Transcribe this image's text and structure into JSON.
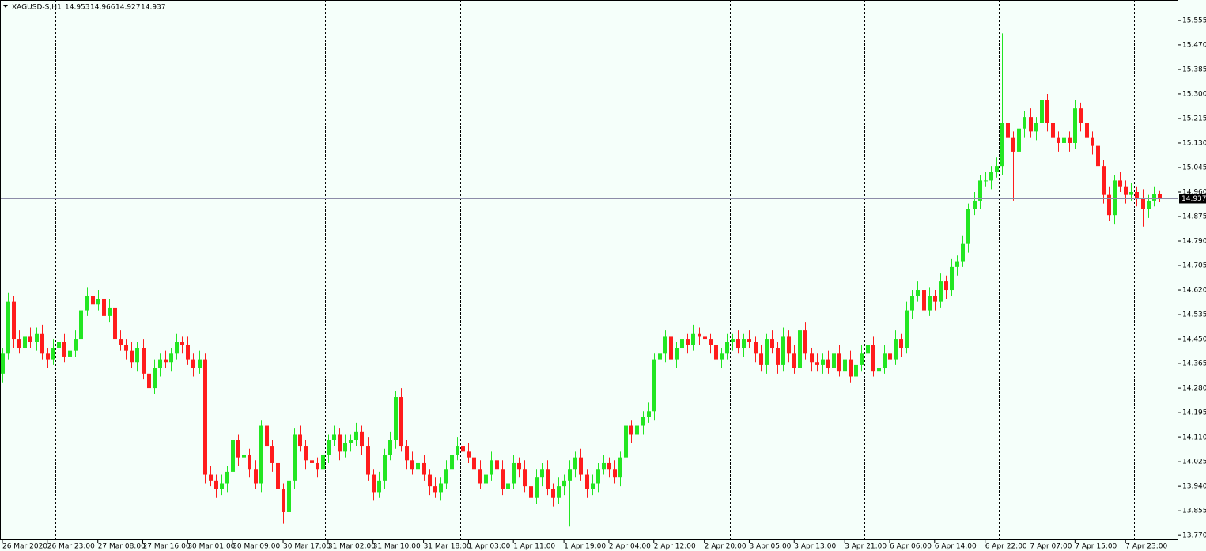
{
  "chart_data": {
    "type": "candlestick",
    "title": "XAGUSD-S,H1",
    "up_color": "#22e622",
    "down_color": "#ff1c1c",
    "period_separators": true,
    "open": [
      14.33,
      14.4,
      14.58,
      14.45,
      14.42,
      14.46,
      14.44,
      14.47,
      14.4,
      14.38,
      14.42,
      14.44,
      14.39,
      14.41,
      14.45,
      14.55,
      14.6,
      14.57,
      14.59,
      14.53,
      14.56,
      14.45,
      14.43,
      14.41,
      14.37,
      14.42,
      14.33,
      14.28,
      14.35,
      14.38,
      14.37,
      14.4,
      14.44,
      14.43,
      14.38,
      14.35,
      14.38,
      13.98,
      13.96,
      13.93,
      13.95,
      13.99,
      14.1,
      14.04,
      14.05,
      14.0,
      13.95,
      14.15,
      14.08,
      14.02,
      13.93,
      13.85,
      13.96,
      14.12,
      14.08,
      14.03,
      14.02,
      14.0,
      14.05,
      14.1,
      14.12,
      14.06,
      14.09,
      14.1,
      14.13,
      14.08,
      13.98,
      13.92,
      13.96,
      14.05,
      14.1,
      14.25,
      14.08,
      14.03,
      14.0,
      14.02,
      13.98,
      13.94,
      13.92,
      13.95,
      14.0,
      14.05,
      14.08,
      14.06,
      14.04,
      14.0,
      13.95,
      13.98,
      14.03,
      14.0,
      13.93,
      13.95,
      14.02,
      14.0,
      13.94,
      13.9,
      13.97,
      14.0,
      13.93,
      13.9,
      13.94,
      13.96,
      14.0,
      14.04,
      13.98,
      13.93,
      13.95,
      14.0,
      14.02,
      14.0,
      13.97,
      14.04,
      14.15,
      14.12,
      14.15,
      14.18,
      14.2,
      14.38,
      14.4,
      14.46,
      14.38,
      14.42,
      14.45,
      14.43,
      14.47,
      14.46,
      14.45,
      14.43,
      14.38,
      14.4,
      14.44,
      14.45,
      14.42,
      14.45,
      14.44,
      14.4,
      14.36,
      14.45,
      14.42,
      14.36,
      14.46,
      14.4,
      14.35,
      14.48,
      14.4,
      14.37,
      14.36,
      14.38,
      14.35,
      14.4,
      14.34,
      14.38,
      14.32,
      14.36,
      14.4,
      14.43,
      14.34,
      14.35,
      14.4,
      14.38,
      14.45,
      14.42,
      14.55,
      14.6,
      14.62,
      14.55,
      14.6,
      14.58,
      14.65,
      14.62,
      14.7,
      14.72,
      14.78,
      14.9,
      14.93,
      15.0,
      15.0,
      15.03,
      15.05,
      15.2,
      15.15,
      15.1,
      15.18,
      15.22,
      15.17,
      15.2,
      15.28,
      15.2,
      15.15,
      15.13,
      15.15,
      15.13,
      15.25,
      15.2,
      15.15,
      15.12,
      15.05,
      14.95,
      14.88,
      15.0,
      14.98,
      14.95,
      14.96,
      14.94,
      14.9,
      14.93,
      14.953
    ],
    "high": [
      14.42,
      14.61,
      14.6,
      14.48,
      14.48,
      14.49,
      14.49,
      14.5,
      14.42,
      14.45,
      14.46,
      14.47,
      14.43,
      14.48,
      14.57,
      14.63,
      14.62,
      14.62,
      14.61,
      14.59,
      14.58,
      14.48,
      14.45,
      14.44,
      14.44,
      14.45,
      14.35,
      14.38,
      14.4,
      14.41,
      14.42,
      14.47,
      14.46,
      14.46,
      14.4,
      14.41,
      14.4,
      14.01,
      13.98,
      13.98,
      14.01,
      14.13,
      14.12,
      14.08,
      14.07,
      14.03,
      14.17,
      14.18,
      14.1,
      14.05,
      13.95,
      13.99,
      14.14,
      14.15,
      14.1,
      14.06,
      14.04,
      14.08,
      14.12,
      14.15,
      14.14,
      14.12,
      14.12,
      14.16,
      14.15,
      14.11,
      14.0,
      13.99,
      14.07,
      14.13,
      14.27,
      14.28,
      14.1,
      14.06,
      14.04,
      14.05,
      14.0,
      13.97,
      13.97,
      14.03,
      14.07,
      14.11,
      14.1,
      14.09,
      14.06,
      14.03,
      14.0,
      14.06,
      14.05,
      14.03,
      13.97,
      14.05,
      14.04,
      14.03,
      13.96,
      14.0,
      14.02,
      14.03,
      13.95,
      13.97,
      13.98,
      14.03,
      14.06,
      14.07,
      14.0,
      13.98,
      14.02,
      14.05,
      14.04,
      14.03,
      14.06,
      14.18,
      14.17,
      14.18,
      14.2,
      14.23,
      14.4,
      14.43,
      14.48,
      14.49,
      14.44,
      14.48,
      14.47,
      14.5,
      14.49,
      14.49,
      14.47,
      14.46,
      14.42,
      14.47,
      14.47,
      14.48,
      14.47,
      14.48,
      14.46,
      14.43,
      14.47,
      14.48,
      14.44,
      14.49,
      14.48,
      14.43,
      14.5,
      14.51,
      14.42,
      14.4,
      14.4,
      14.41,
      14.42,
      14.43,
      14.4,
      14.41,
      14.38,
      14.43,
      14.45,
      14.46,
      14.37,
      14.43,
      14.42,
      14.48,
      14.47,
      14.58,
      14.62,
      14.65,
      14.64,
      14.63,
      14.62,
      14.68,
      14.67,
      14.73,
      14.74,
      14.81,
      14.92,
      14.96,
      15.02,
      15.03,
      15.05,
      15.08,
      15.51,
      15.23,
      15.17,
      15.21,
      15.24,
      15.25,
      15.22,
      15.37,
      15.3,
      15.23,
      15.17,
      15.18,
      15.17,
      15.28,
      15.27,
      15.23,
      15.17,
      15.15,
      15.07,
      14.98,
      15.02,
      15.03,
      15.0,
      14.99,
      14.98,
      14.97,
      14.95,
      14.98,
      14.966
    ],
    "low": [
      14.3,
      14.38,
      14.42,
      14.4,
      14.39,
      14.42,
      14.41,
      14.38,
      14.35,
      14.36,
      14.39,
      14.37,
      14.36,
      14.39,
      14.42,
      14.53,
      14.54,
      14.55,
      14.5,
      14.51,
      14.42,
      14.41,
      14.38,
      14.35,
      14.34,
      14.31,
      14.25,
      14.26,
      14.32,
      14.35,
      14.34,
      14.38,
      14.4,
      14.36,
      14.32,
      14.33,
      13.95,
      13.94,
      13.9,
      13.91,
      13.92,
      13.97,
      14.01,
      14.02,
      13.97,
      13.93,
      13.92,
      14.06,
      13.99,
      13.91,
      13.81,
      13.83,
      13.93,
      14.06,
      14.0,
      14.0,
      13.97,
      13.98,
      14.02,
      14.08,
      14.03,
      14.04,
      14.06,
      14.08,
      14.05,
      13.96,
      13.89,
      13.9,
      13.93,
      14.03,
      14.07,
      14.06,
      14.0,
      13.98,
      13.97,
      13.96,
      13.91,
      13.9,
      13.89,
      13.93,
      13.97,
      14.03,
      14.03,
      14.02,
      13.97,
      13.93,
      13.92,
      13.96,
      13.97,
      13.91,
      13.9,
      13.93,
      13.97,
      13.92,
      13.87,
      13.88,
      13.94,
      13.91,
      13.87,
      13.88,
      13.91,
      13.8,
      13.97,
      13.96,
      13.9,
      13.91,
      13.92,
      13.98,
      13.97,
      13.95,
      13.94,
      14.02,
      14.09,
      14.1,
      14.12,
      14.16,
      14.17,
      14.36,
      14.37,
      14.36,
      14.35,
      14.4,
      14.4,
      14.41,
      14.43,
      14.43,
      14.4,
      14.36,
      14.35,
      14.38,
      14.41,
      14.4,
      14.39,
      14.42,
      14.37,
      14.34,
      14.33,
      14.4,
      14.33,
      14.34,
      14.37,
      14.33,
      14.32,
      14.38,
      14.34,
      14.34,
      14.33,
      14.33,
      14.32,
      14.32,
      14.31,
      14.3,
      14.29,
      14.34,
      14.37,
      14.32,
      14.31,
      14.33,
      14.35,
      14.36,
      14.39,
      14.4,
      14.52,
      14.58,
      14.52,
      14.53,
      14.55,
      14.56,
      14.59,
      14.6,
      14.67,
      14.7,
      14.75,
      14.88,
      14.9,
      14.98,
      14.97,
      15.01,
      15.02,
      15.13,
      14.93,
      15.08,
      15.15,
      15.15,
      15.14,
      15.18,
      15.17,
      15.13,
      15.1,
      15.11,
      15.1,
      15.11,
      15.17,
      15.13,
      15.09,
      15.03,
      14.92,
      14.86,
      14.85,
      14.96,
      14.92,
      14.93,
      14.91,
      14.84,
      14.87,
      14.91,
      14.927
    ],
    "close": [
      14.4,
      14.58,
      14.45,
      14.42,
      14.46,
      14.44,
      14.47,
      14.4,
      14.38,
      14.42,
      14.44,
      14.39,
      14.41,
      14.45,
      14.55,
      14.6,
      14.57,
      14.59,
      14.53,
      14.56,
      14.45,
      14.43,
      14.41,
      14.37,
      14.42,
      14.33,
      14.28,
      14.35,
      14.38,
      14.37,
      14.4,
      14.44,
      14.43,
      14.38,
      14.35,
      14.38,
      13.98,
      13.96,
      13.93,
      13.95,
      13.99,
      14.1,
      14.04,
      14.05,
      14.0,
      13.95,
      14.15,
      14.08,
      14.02,
      13.93,
      13.85,
      13.96,
      14.12,
      14.08,
      14.03,
      14.02,
      14.0,
      14.05,
      14.1,
      14.12,
      14.06,
      14.09,
      14.1,
      14.13,
      14.08,
      13.98,
      13.92,
      13.96,
      14.05,
      14.1,
      14.25,
      14.08,
      14.03,
      14.0,
      14.02,
      13.98,
      13.94,
      13.92,
      13.95,
      14.0,
      14.05,
      14.08,
      14.06,
      14.04,
      14.0,
      13.95,
      13.98,
      14.03,
      14.0,
      13.93,
      13.95,
      14.02,
      14.0,
      13.94,
      13.9,
      13.97,
      14.0,
      13.93,
      13.9,
      13.94,
      13.96,
      14.0,
      14.04,
      13.98,
      13.93,
      13.95,
      14.0,
      14.02,
      14.0,
      13.97,
      14.04,
      14.15,
      14.12,
      14.15,
      14.18,
      14.2,
      14.38,
      14.4,
      14.46,
      14.38,
      14.42,
      14.45,
      14.43,
      14.47,
      14.46,
      14.45,
      14.43,
      14.38,
      14.4,
      14.44,
      14.45,
      14.42,
      14.45,
      14.44,
      14.4,
      14.36,
      14.45,
      14.42,
      14.36,
      14.46,
      14.4,
      14.35,
      14.48,
      14.4,
      14.37,
      14.36,
      14.38,
      14.35,
      14.4,
      14.34,
      14.38,
      14.32,
      14.36,
      14.4,
      14.43,
      14.34,
      14.35,
      14.4,
      14.38,
      14.45,
      14.42,
      14.55,
      14.6,
      14.62,
      14.55,
      14.6,
      14.58,
      14.65,
      14.62,
      14.7,
      14.72,
      14.78,
      14.9,
      14.93,
      15.0,
      15.0,
      15.03,
      15.05,
      15.2,
      15.15,
      15.1,
      15.18,
      15.22,
      15.17,
      15.2,
      15.28,
      15.2,
      15.15,
      15.13,
      15.15,
      15.13,
      15.25,
      15.2,
      15.15,
      15.12,
      15.05,
      14.95,
      14.88,
      15.0,
      14.98,
      14.95,
      14.96,
      14.94,
      14.9,
      14.93,
      14.953,
      14.937
    ],
    "xlim": [
      -0.42,
      209.4
    ],
    "xticks": [
      {
        "value": 0,
        "label": "26 Mar 2020"
      },
      {
        "value": 8,
        "label": "26 Mar 23:00"
      },
      {
        "value": 17,
        "label": "27 Mar 08:00"
      },
      {
        "value": 25,
        "label": "27 Mar 16:00"
      },
      {
        "value": 33,
        "label": "30 Mar 01:00"
      },
      {
        "value": 41,
        "label": "30 Mar 09:00"
      },
      {
        "value": 50,
        "label": "30 Mar 17:00"
      },
      {
        "value": 58,
        "label": "31 Mar 02:00"
      },
      {
        "value": 66,
        "label": "31 Mar 10:00"
      },
      {
        "value": 75,
        "label": "31 Mar 18:00"
      },
      {
        "value": 83,
        "label": "1 Apr 03:00"
      },
      {
        "value": 91,
        "label": "1 Apr 11:00"
      },
      {
        "value": 100,
        "label": "1 Apr 19:00"
      },
      {
        "value": 108,
        "label": "2 Apr 04:00"
      },
      {
        "value": 116,
        "label": "2 Apr 12:00"
      },
      {
        "value": 125,
        "label": "2 Apr 20:00"
      },
      {
        "value": 133,
        "label": "3 Apr 05:00"
      },
      {
        "value": 141,
        "label": "3 Apr 13:00"
      },
      {
        "value": 150,
        "label": "3 Apr 21:00"
      },
      {
        "value": 158,
        "label": "6 Apr 06:00"
      },
      {
        "value": 166,
        "label": "6 Apr 14:00"
      },
      {
        "value": 175,
        "label": "6 Apr 22:00"
      },
      {
        "value": 183,
        "label": "7 Apr 07:00"
      },
      {
        "value": 191,
        "label": "7 Apr 15:00"
      },
      {
        "value": 200,
        "label": "7 Apr 23:00"
      }
    ],
    "ylim": [
      13.754,
      15.626
    ],
    "yticks": [
      15.555,
      {
        "value": 15.47,
        "label": "15.470"
      },
      15.385,
      {
        "value": 15.3,
        "label": "15.300"
      },
      15.215,
      {
        "value": 15.13,
        "label": "15.130"
      },
      15.045,
      {
        "value": 14.96,
        "label": "14.960"
      },
      14.875,
      {
        "value": 14.79,
        "label": "14.790"
      },
      14.705,
      {
        "value": 14.62,
        "label": "14.620"
      },
      14.535,
      {
        "value": 14.45,
        "label": "14.450"
      },
      14.365,
      {
        "value": 14.28,
        "label": "14.280"
      },
      14.195,
      {
        "value": 14.11,
        "label": "14.110"
      },
      14.025,
      {
        "value": 13.94,
        "label": "13.940"
      },
      13.855,
      {
        "value": 13.77,
        "label": "13.770"
      }
    ]
  }
}
